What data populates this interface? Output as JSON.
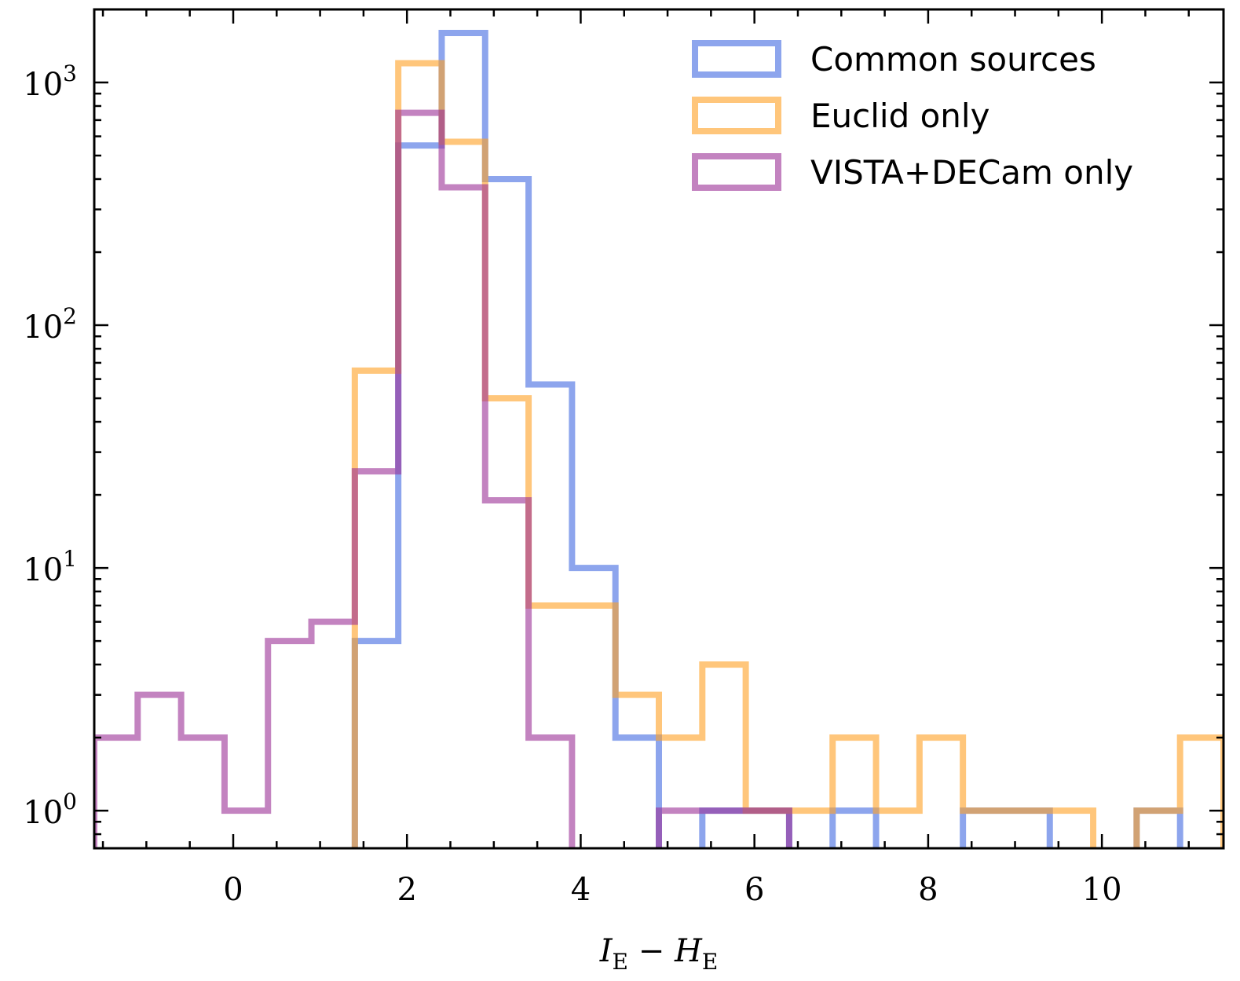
{
  "chart_data": {
    "type": "histogram",
    "title": "",
    "xlabel": "I_E − H_E",
    "ylabel": "",
    "yscale": "log",
    "xlim": [
      -1.6,
      11.4
    ],
    "ylim": [
      0.7,
      2000
    ],
    "x_ticks": [
      {
        "value": 0,
        "label": "0"
      },
      {
        "value": 2,
        "label": "2"
      },
      {
        "value": 4,
        "label": "4"
      },
      {
        "value": 6,
        "label": "6"
      },
      {
        "value": 8,
        "label": "8"
      },
      {
        "value": 10,
        "label": "10"
      }
    ],
    "y_ticks": [
      {
        "value": 1,
        "base": "10",
        "exp": "0"
      },
      {
        "value": 10,
        "base": "10",
        "exp": "1"
      },
      {
        "value": 100,
        "base": "10",
        "exp": "2"
      },
      {
        "value": 1000,
        "base": "10",
        "exp": "3"
      }
    ],
    "xlabel_parts": {
      "i": "I",
      "i_sub": "E",
      "minus": " − ",
      "h": "H",
      "h_sub": "E"
    },
    "legend_position": "top-right",
    "series": [
      {
        "name": "Common sources",
        "color": "#4169e1",
        "edges": [
          1.4,
          1.9,
          2.4,
          2.9,
          3.4,
          3.9,
          4.4,
          4.9,
          5.4,
          5.9,
          6.4,
          6.9,
          7.4,
          7.9,
          8.4,
          8.9,
          9.4,
          9.9,
          10.4,
          10.9
        ],
        "counts": [
          5,
          550,
          1600,
          400,
          57,
          10,
          2,
          0,
          1,
          1,
          0,
          1,
          0,
          0,
          1,
          1,
          0,
          0,
          1
        ]
      },
      {
        "name": "Euclid only",
        "color": "#ffa023",
        "edges": [
          1.4,
          1.9,
          2.4,
          2.9,
          3.4,
          3.9,
          4.4,
          4.9,
          5.4,
          5.9,
          6.4,
          6.9,
          7.4,
          7.9,
          8.4,
          8.9,
          9.4,
          9.9,
          10.4,
          10.9,
          11.4
        ],
        "counts": [
          65,
          1200,
          570,
          50,
          7,
          7,
          3,
          2,
          4,
          1,
          1,
          2,
          1,
          2,
          1,
          1,
          1,
          0,
          1,
          2
        ]
      },
      {
        "name": "VISTA+DECam only",
        "color": "#9b3096",
        "edges": [
          -1.6,
          -1.1,
          -0.6,
          -0.1,
          0.4,
          0.9,
          1.4,
          1.9,
          2.4,
          2.9,
          3.4,
          3.9,
          4.4,
          4.9,
          5.4,
          5.9,
          6.4
        ],
        "counts": [
          2,
          3,
          2,
          1,
          5,
          6,
          25,
          750,
          370,
          19,
          2,
          0,
          0,
          1,
          1,
          1
        ]
      }
    ]
  }
}
